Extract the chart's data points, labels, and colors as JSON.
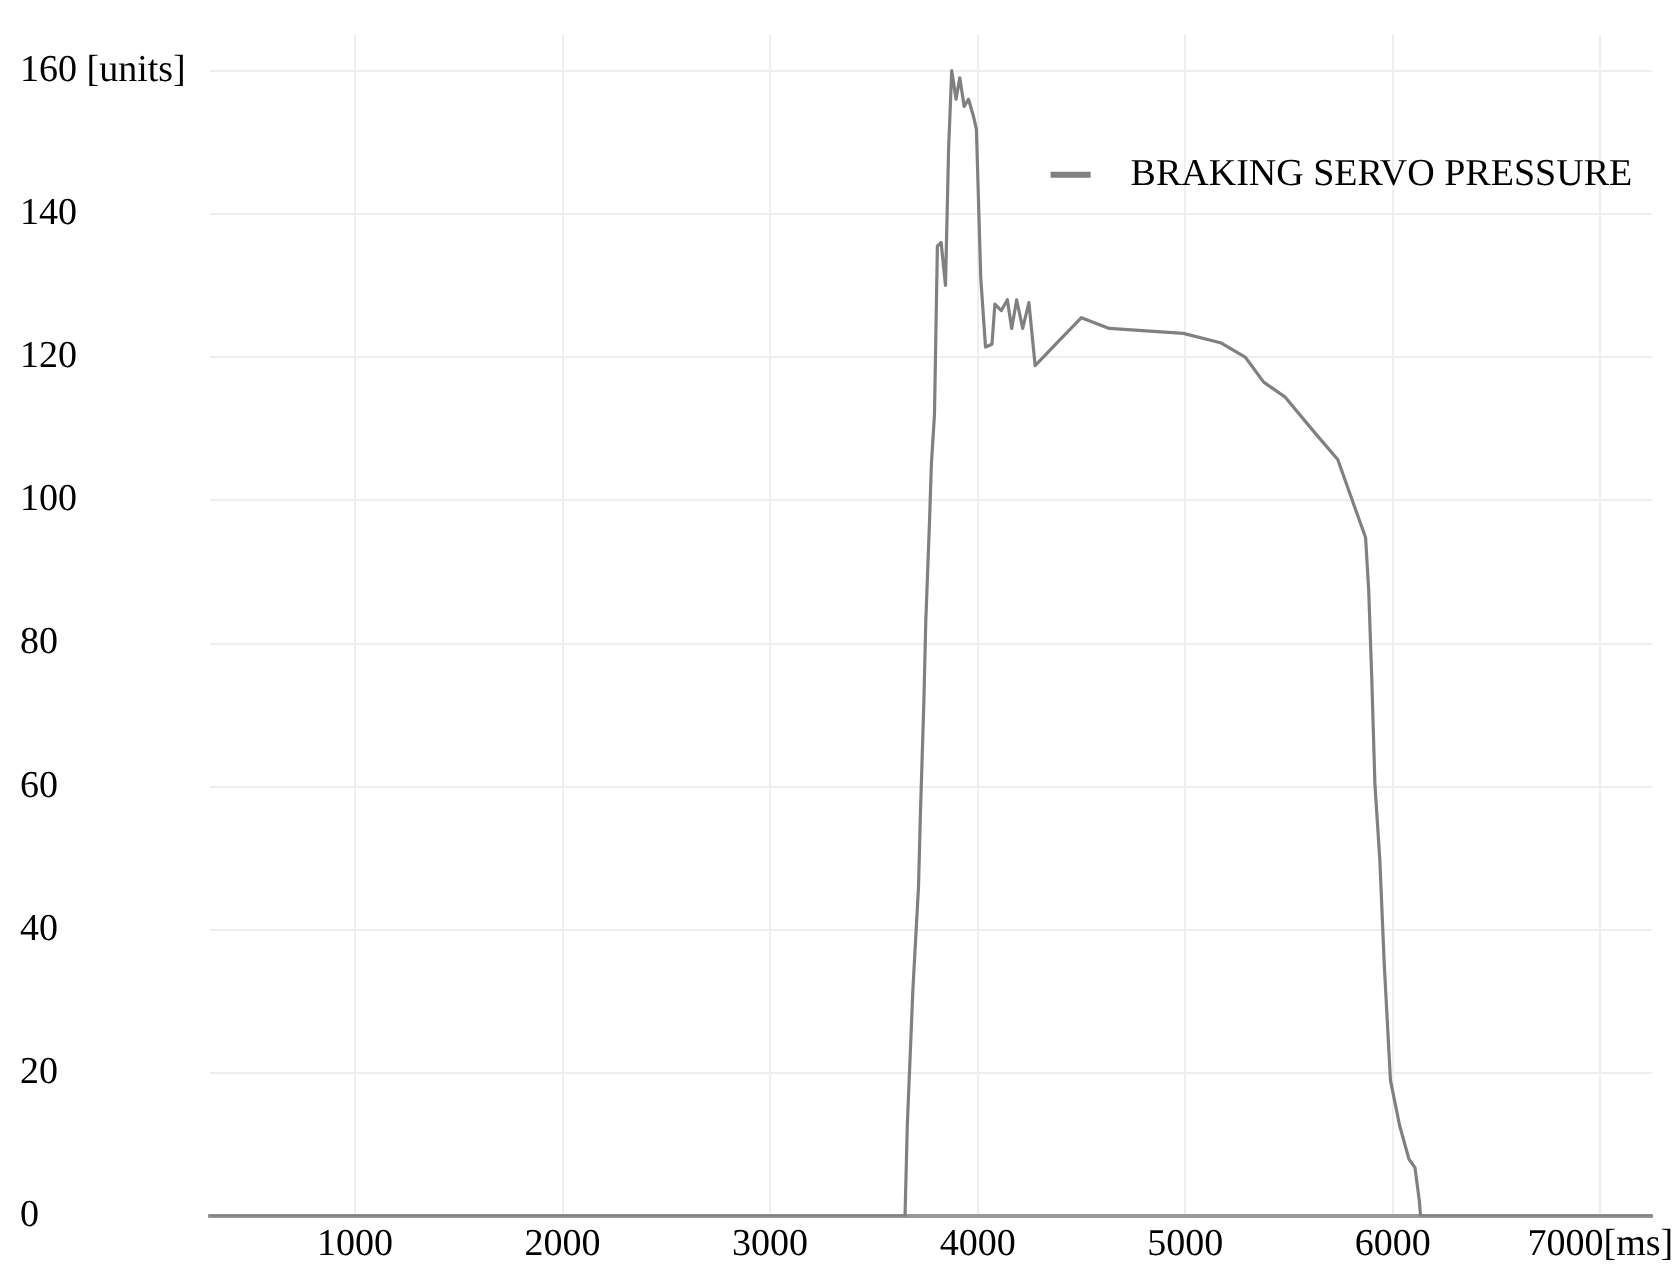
{
  "chart_data": {
    "type": "line",
    "x": [
      300,
      3650,
      3661,
      3688,
      3715,
      3724,
      3741,
      3750,
      3768,
      3777,
      3792,
      3806,
      3824,
      3845,
      3860,
      3875,
      3896,
      3914,
      3935,
      3956,
      3980,
      3994,
      4015,
      4038,
      4069,
      4083,
      4114,
      4143,
      4164,
      4188,
      4217,
      4247,
      4277,
      4396,
      4500,
      4634,
      4991,
      5170,
      5289,
      5378,
      5482,
      5631,
      5735,
      5795,
      5869,
      5884,
      5899,
      5914,
      5938,
      5959,
      5989,
      6033,
      6078,
      6107,
      6128,
      6134,
      7250
    ],
    "series": [
      {
        "name": "BRAKING SERVO PRESSURE",
        "color": "#808080",
        "values": [
          0,
          0,
          12.7,
          31.7,
          46,
          56,
          72,
          83,
          97,
          105,
          112,
          135.5,
          136,
          130,
          149,
          160,
          156,
          159,
          155,
          156,
          153.6,
          151.8,
          131,
          121.4,
          121.8,
          127.4,
          126.5,
          128,
          124,
          128,
          124,
          127.6,
          118.8,
          122.4,
          125.5,
          124,
          123.3,
          122,
          120,
          116.5,
          114.4,
          109.2,
          105.7,
          100.8,
          94.8,
          87.5,
          75,
          60.4,
          49.6,
          35.2,
          19,
          12.7,
          8,
          6.8,
          2.2,
          0,
          0
        ]
      }
    ],
    "xlim": [
      300,
      7250
    ],
    "xticks": [
      1000,
      2000,
      3000,
      4000,
      5000,
      6000,
      {
        "value": 7000,
        "label": "7000[ms]"
      }
    ],
    "ylim": [
      0,
      165
    ],
    "yticks": [
      0,
      20,
      40,
      60,
      80,
      100,
      120,
      140,
      {
        "value": 160,
        "label": "160 [units]"
      }
    ],
    "grid": true,
    "legend": "top right",
    "marker": "none",
    "line_style": "solid"
  }
}
